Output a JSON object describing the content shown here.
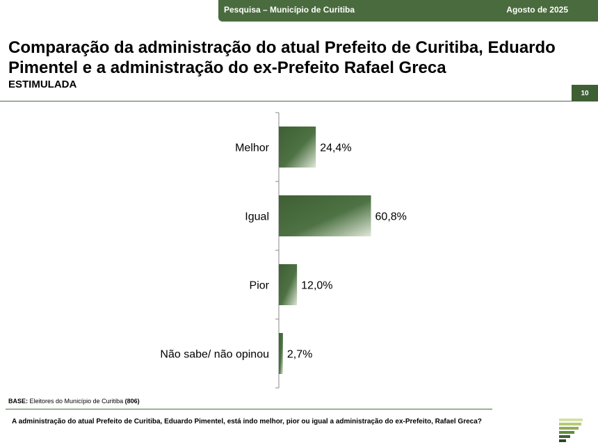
{
  "header": {
    "survey_label": "Pesquisa – Município de Curitiba",
    "date_label": "Agosto de 2025"
  },
  "title": "Comparação da administração do atual Prefeito de Curitiba, Eduardo Pimentel e a administração do ex-Prefeito Rafael Greca",
  "subtitle": "ESTIMULADA",
  "page_number": "10",
  "base_note": {
    "label": "BASE:",
    "text": "Eleitores do Município de Curitiba",
    "count": "(806)"
  },
  "question": "A administração do atual Prefeito de Curitiba, Eduardo Pimentel, está indo melhor, pior ou igual a administração do ex-Prefeito, Rafael Greca?",
  "colors": {
    "brand_green": "#4a6b3e",
    "bar_dark": "#3e5f34",
    "bar_light": "#dfe8d8"
  },
  "chart_data": {
    "type": "bar",
    "orientation": "horizontal",
    "categories": [
      "Melhor",
      "Igual",
      "Pior",
      "Não sabe/ não opinou"
    ],
    "values": [
      24.4,
      60.8,
      12.0,
      2.7
    ],
    "value_labels": [
      "24,4%",
      "60,8%",
      "12,0%",
      "2,7%"
    ],
    "unit": "%",
    "xlim": [
      0,
      100
    ],
    "grid": false,
    "legend": "none"
  }
}
